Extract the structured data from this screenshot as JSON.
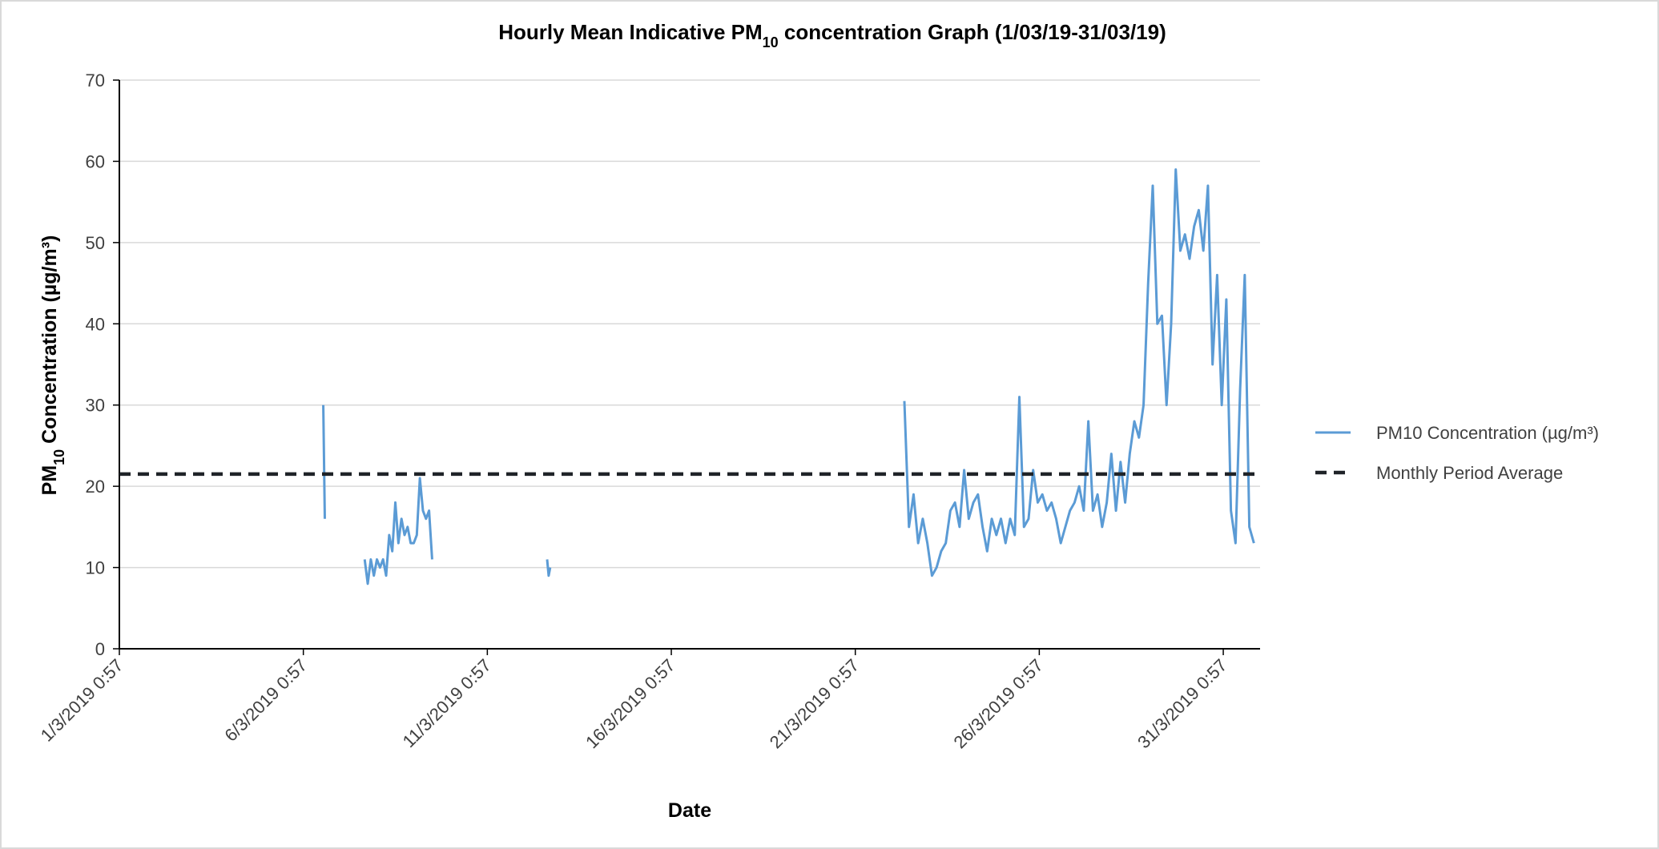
{
  "chart_data": {
    "type": "line",
    "title_parts": [
      "Hourly Mean Indicative PM",
      "10",
      " concentration Graph (1/03/19-31/03/19)"
    ],
    "x_label": "Date",
    "y_label_parts": [
      "PM",
      "10",
      " Concentration (µg/m³)"
    ],
    "xlim": [
      "2019-03-01T00:57",
      "2019-04-01T00:57"
    ],
    "xticks": [
      {
        "value": "2019-03-01T00:57",
        "label": "1/3/2019 0:57"
      },
      {
        "value": "2019-03-06T00:57",
        "label": "6/3/2019 0:57"
      },
      {
        "value": "2019-03-11T00:57",
        "label": "11/3/2019 0:57"
      },
      {
        "value": "2019-03-16T00:57",
        "label": "16/3/2019 0:57"
      },
      {
        "value": "2019-03-21T00:57",
        "label": "21/3/2019 0:57"
      },
      {
        "value": "2019-03-26T00:57",
        "label": "26/3/2019 0:57"
      },
      {
        "value": "2019-03-31T00:57",
        "label": "31/3/2019 0:57"
      }
    ],
    "ylim": [
      0,
      70
    ],
    "yticks": [
      0,
      10,
      20,
      30,
      40,
      50,
      60,
      70
    ],
    "grid": true,
    "legend": "right",
    "series": [
      {
        "name": "PM10 Concentration (µg/m³)",
        "color": "#5b9bd5",
        "dash": false,
        "x": [
          "2019-03-06T13:57",
          "2019-03-06T14:57",
          "2019-03-07T03:57",
          "2019-03-07T16:57",
          "2019-03-07T18:57",
          "2019-03-07T20:57",
          "2019-03-07T22:57",
          "2019-03-08T00:57",
          "2019-03-08T02:57",
          "2019-03-08T04:57",
          "2019-03-08T06:57",
          "2019-03-08T08:57",
          "2019-03-08T10:57",
          "2019-03-08T12:57",
          "2019-03-08T14:57",
          "2019-03-08T16:57",
          "2019-03-08T18:57",
          "2019-03-08T20:57",
          "2019-03-08T22:57",
          "2019-03-09T00:57",
          "2019-03-09T02:57",
          "2019-03-09T04:57",
          "2019-03-09T06:57",
          "2019-03-09T08:57",
          "2019-03-09T10:57",
          "2019-03-09T12:57",
          "2019-03-11T00:57",
          "2019-03-12T15:57",
          "2019-03-12T16:57",
          "2019-03-12T17:57",
          "2019-03-17T00:57",
          "2019-03-22T08:57",
          "2019-03-22T11:57",
          "2019-03-22T14:57",
          "2019-03-22T17:57",
          "2019-03-22T20:57",
          "2019-03-22T23:57",
          "2019-03-23T02:57",
          "2019-03-23T05:57",
          "2019-03-23T08:57",
          "2019-03-23T11:57",
          "2019-03-23T14:57",
          "2019-03-23T17:57",
          "2019-03-23T20:57",
          "2019-03-23T23:57",
          "2019-03-24T02:57",
          "2019-03-24T05:57",
          "2019-03-24T08:57",
          "2019-03-24T11:57",
          "2019-03-24T14:57",
          "2019-03-24T17:57",
          "2019-03-24T20:57",
          "2019-03-24T23:57",
          "2019-03-25T02:57",
          "2019-03-25T05:57",
          "2019-03-25T08:57",
          "2019-03-25T11:57",
          "2019-03-25T14:57",
          "2019-03-25T17:57",
          "2019-03-25T20:57",
          "2019-03-25T23:57",
          "2019-03-26T02:57",
          "2019-03-26T05:57",
          "2019-03-26T08:57",
          "2019-03-26T11:57",
          "2019-03-26T14:57",
          "2019-03-26T17:57",
          "2019-03-26T20:57",
          "2019-03-26T23:57",
          "2019-03-27T02:57",
          "2019-03-27T05:57",
          "2019-03-27T08:57",
          "2019-03-27T11:57",
          "2019-03-27T14:57",
          "2019-03-27T17:57",
          "2019-03-27T20:57",
          "2019-03-27T23:57",
          "2019-03-28T02:57",
          "2019-03-28T05:57",
          "2019-03-28T08:57",
          "2019-03-28T11:57",
          "2019-03-28T14:57",
          "2019-03-28T17:57",
          "2019-03-28T20:57",
          "2019-03-28T23:57",
          "2019-03-29T02:57",
          "2019-03-29T05:57",
          "2019-03-29T08:57",
          "2019-03-29T11:57",
          "2019-03-29T14:57",
          "2019-03-29T17:57",
          "2019-03-29T20:57",
          "2019-03-29T23:57",
          "2019-03-30T02:57",
          "2019-03-30T05:57",
          "2019-03-30T08:57",
          "2019-03-30T11:57",
          "2019-03-30T14:57",
          "2019-03-30T17:57",
          "2019-03-30T20:57",
          "2019-03-30T23:57",
          "2019-03-31T02:57",
          "2019-03-31T05:57",
          "2019-03-31T08:57",
          "2019-03-31T11:57",
          "2019-03-31T14:57",
          "2019-03-31T17:57",
          "2019-03-31T20:57"
        ],
        "values": [
          30,
          16,
          null,
          11,
          8,
          11,
          9,
          11,
          10,
          11,
          9,
          14,
          12,
          18,
          13,
          16,
          14,
          15,
          13,
          13,
          14,
          21,
          17,
          16,
          17,
          11,
          null,
          11,
          9,
          10,
          null,
          30.5,
          15,
          19,
          13,
          16,
          13,
          9,
          10,
          12,
          13,
          17,
          18,
          15,
          22,
          16,
          18,
          19,
          15,
          12,
          16,
          14,
          16,
          13,
          16,
          14,
          31,
          15,
          16,
          22,
          18,
          19,
          17,
          18,
          16,
          13,
          15,
          17,
          18,
          20,
          17,
          28,
          17,
          19,
          15,
          18,
          24,
          17,
          23,
          18,
          24,
          28,
          26,
          30,
          45,
          57,
          40,
          41,
          30,
          40,
          59,
          49,
          51,
          48,
          52,
          54,
          49,
          57,
          35,
          46,
          30,
          43,
          17,
          13,
          32,
          46,
          15,
          13
        ]
      },
      {
        "name": "Monthly Period Average",
        "color": "#1f2328",
        "dash": true,
        "x": [
          "2019-03-01T00:57",
          "2019-04-01T00:57"
        ],
        "values": [
          21.5,
          21.5
        ]
      }
    ]
  }
}
